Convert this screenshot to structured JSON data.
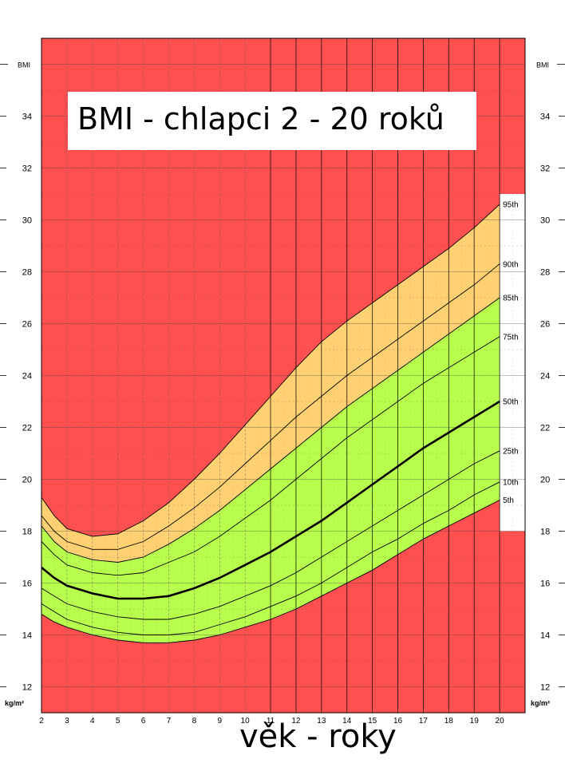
{
  "chart_data": {
    "type": "area",
    "title": "BMI - chlapci 2 - 20 roků",
    "xlabel": "věk - roky",
    "ylabel": "BMI",
    "unit_label": "kg/m²",
    "xlim": [
      2,
      21
    ],
    "ylim": [
      11,
      37
    ],
    "x_ticks": [
      2,
      3,
      4,
      5,
      6,
      7,
      8,
      9,
      10,
      11,
      12,
      13,
      14,
      15,
      16,
      17,
      18,
      19,
      20
    ],
    "y_ticks": [
      12,
      14,
      16,
      18,
      20,
      22,
      24,
      26,
      28,
      30,
      32,
      34
    ],
    "grid": true,
    "zone_colors": {
      "obese_underweight": "#ff5050",
      "overweight": "#ffd173",
      "normal": "#b8ff4d",
      "line": "#000000"
    },
    "x": [
      2,
      2.5,
      3,
      4,
      5,
      6,
      7,
      8,
      9,
      10,
      11,
      12,
      13,
      14,
      15,
      16,
      17,
      18,
      19,
      20
    ],
    "series": [
      {
        "name": "95th",
        "values": [
          19.3,
          18.6,
          18.1,
          17.8,
          17.9,
          18.4,
          19.1,
          20.0,
          21.0,
          22.1,
          23.2,
          24.3,
          25.3,
          26.1,
          26.8,
          27.5,
          28.2,
          28.9,
          29.7,
          30.6
        ]
      },
      {
        "name": "90th",
        "values": [
          18.6,
          18.0,
          17.6,
          17.3,
          17.3,
          17.6,
          18.2,
          18.9,
          19.7,
          20.6,
          21.5,
          22.4,
          23.2,
          24.0,
          24.7,
          25.4,
          26.1,
          26.8,
          27.5,
          28.3
        ]
      },
      {
        "name": "85th",
        "values": [
          18.2,
          17.6,
          17.2,
          16.9,
          16.8,
          17.0,
          17.5,
          18.1,
          18.8,
          19.6,
          20.4,
          21.2,
          22.0,
          22.8,
          23.5,
          24.2,
          24.9,
          25.6,
          26.3,
          27.0
        ]
      },
      {
        "name": "75th",
        "values": [
          17.6,
          17.1,
          16.7,
          16.4,
          16.3,
          16.4,
          16.8,
          17.2,
          17.8,
          18.5,
          19.2,
          20.0,
          20.8,
          21.6,
          22.3,
          23.0,
          23.7,
          24.3,
          24.9,
          25.5
        ]
      },
      {
        "name": "50th",
        "values": [
          16.6,
          16.2,
          15.9,
          15.6,
          15.4,
          15.4,
          15.5,
          15.8,
          16.2,
          16.7,
          17.2,
          17.8,
          18.4,
          19.1,
          19.8,
          20.5,
          21.2,
          21.8,
          22.4,
          23.0
        ]
      },
      {
        "name": "25th",
        "values": [
          15.8,
          15.5,
          15.2,
          14.9,
          14.7,
          14.6,
          14.6,
          14.8,
          15.1,
          15.5,
          15.9,
          16.4,
          17.0,
          17.6,
          18.2,
          18.8,
          19.4,
          20.0,
          20.6,
          21.1
        ]
      },
      {
        "name": "10th",
        "values": [
          15.2,
          14.9,
          14.6,
          14.3,
          14.1,
          14.0,
          14.0,
          14.1,
          14.4,
          14.7,
          15.1,
          15.5,
          16.0,
          16.6,
          17.2,
          17.7,
          18.3,
          18.8,
          19.4,
          19.9
        ]
      },
      {
        "name": "5th",
        "values": [
          14.8,
          14.5,
          14.3,
          14.0,
          13.8,
          13.7,
          13.7,
          13.8,
          14.0,
          14.3,
          14.6,
          15.0,
          15.5,
          16.0,
          16.5,
          17.1,
          17.7,
          18.2,
          18.7,
          19.2
        ]
      }
    ]
  }
}
